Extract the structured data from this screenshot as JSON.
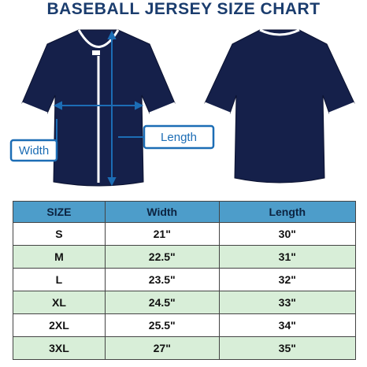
{
  "header": {
    "title": "BASEBALL JERSEY SIZE CHART"
  },
  "diagram": {
    "width_label": "Width",
    "length_label": "Length"
  },
  "table": {
    "columns": [
      "SIZE",
      "Width",
      "Length"
    ],
    "rows": [
      [
        "S",
        "21\"",
        "30\""
      ],
      [
        "M",
        "22.5\"",
        "31\""
      ],
      [
        "L",
        "23.5\"",
        "32\""
      ],
      [
        "XL",
        "24.5\"",
        "33\""
      ],
      [
        "2XL",
        "25.5\"",
        "34\""
      ],
      [
        "3XL",
        "27\"",
        "35\""
      ]
    ]
  }
}
